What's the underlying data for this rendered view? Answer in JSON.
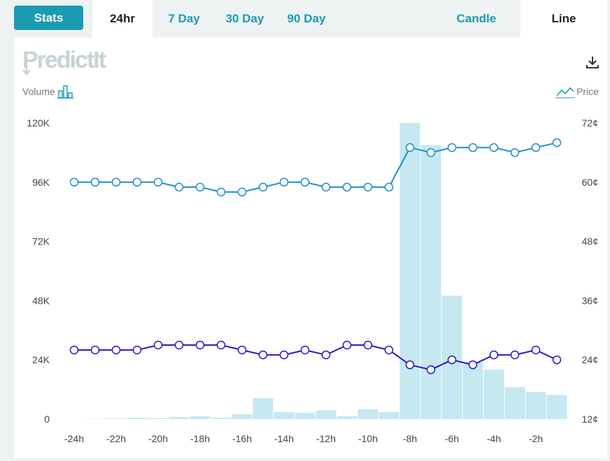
{
  "tabs": {
    "stats": "Stats",
    "ranges": [
      "24hr",
      "7 Day",
      "30 Day",
      "90 Day"
    ],
    "active_range": "24hr",
    "types": [
      "Candle",
      "Line"
    ],
    "active_type": "Line"
  },
  "logo_text": "PredictIt",
  "labels": {
    "volume": "Volume",
    "price": "Price"
  },
  "colors": {
    "accent": "#1a9bb3",
    "series_a": "#1f8fca",
    "series_b": "#2d17c2",
    "volume_bar": "#c5e8f1"
  },
  "chart_data": {
    "type": "line",
    "x": [
      -24,
      -23,
      -22,
      -21,
      -20,
      -19,
      -18,
      -17,
      -16,
      -15,
      -14,
      -13,
      -12,
      -11,
      -10,
      -9,
      -8,
      -7,
      -6,
      -5,
      -4,
      -3,
      -2,
      -1
    ],
    "x_tick_labels": [
      "-24h",
      "-22h",
      "-20h",
      "-18h",
      "-16h",
      "-14h",
      "-12h",
      "-10h",
      "-8h",
      "-6h",
      "-4h",
      "-2h"
    ],
    "x_tick_values": [
      -24,
      -22,
      -20,
      -18,
      -16,
      -14,
      -12,
      -10,
      -8,
      -6,
      -4,
      -2
    ],
    "left_axis": {
      "label": "Volume",
      "ticks": [
        "0",
        "24K",
        "48K",
        "72K",
        "96K",
        "120K"
      ],
      "range": [
        0,
        120000
      ]
    },
    "right_axis": {
      "label": "Price",
      "ticks": [
        "12¢",
        "24¢",
        "36¢",
        "48¢",
        "60¢",
        "72¢"
      ],
      "range": [
        12,
        72
      ]
    },
    "series": [
      {
        "values": [
          60,
          60,
          60,
          60,
          60,
          59,
          59,
          58,
          58,
          59,
          60,
          60,
          59,
          59,
          59,
          59,
          67,
          66,
          67,
          67,
          67,
          66,
          67,
          68
        ]
      },
      {
        "values": [
          26,
          26,
          26,
          26,
          27,
          27,
          27,
          27,
          26,
          25,
          25,
          26,
          25,
          27,
          27,
          26,
          23,
          22,
          24,
          23,
          25,
          25,
          26,
          24
        ]
      }
    ],
    "volume": [
      0,
      100,
      300,
      600,
      400,
      800,
      1200,
      500,
      2000,
      8500,
      2800,
      2500,
      3500,
      1200,
      4000,
      2800,
      120000,
      111000,
      50000,
      23000,
      20000,
      13000,
      11000,
      9800
    ],
    "grid": false,
    "legend": "none"
  }
}
